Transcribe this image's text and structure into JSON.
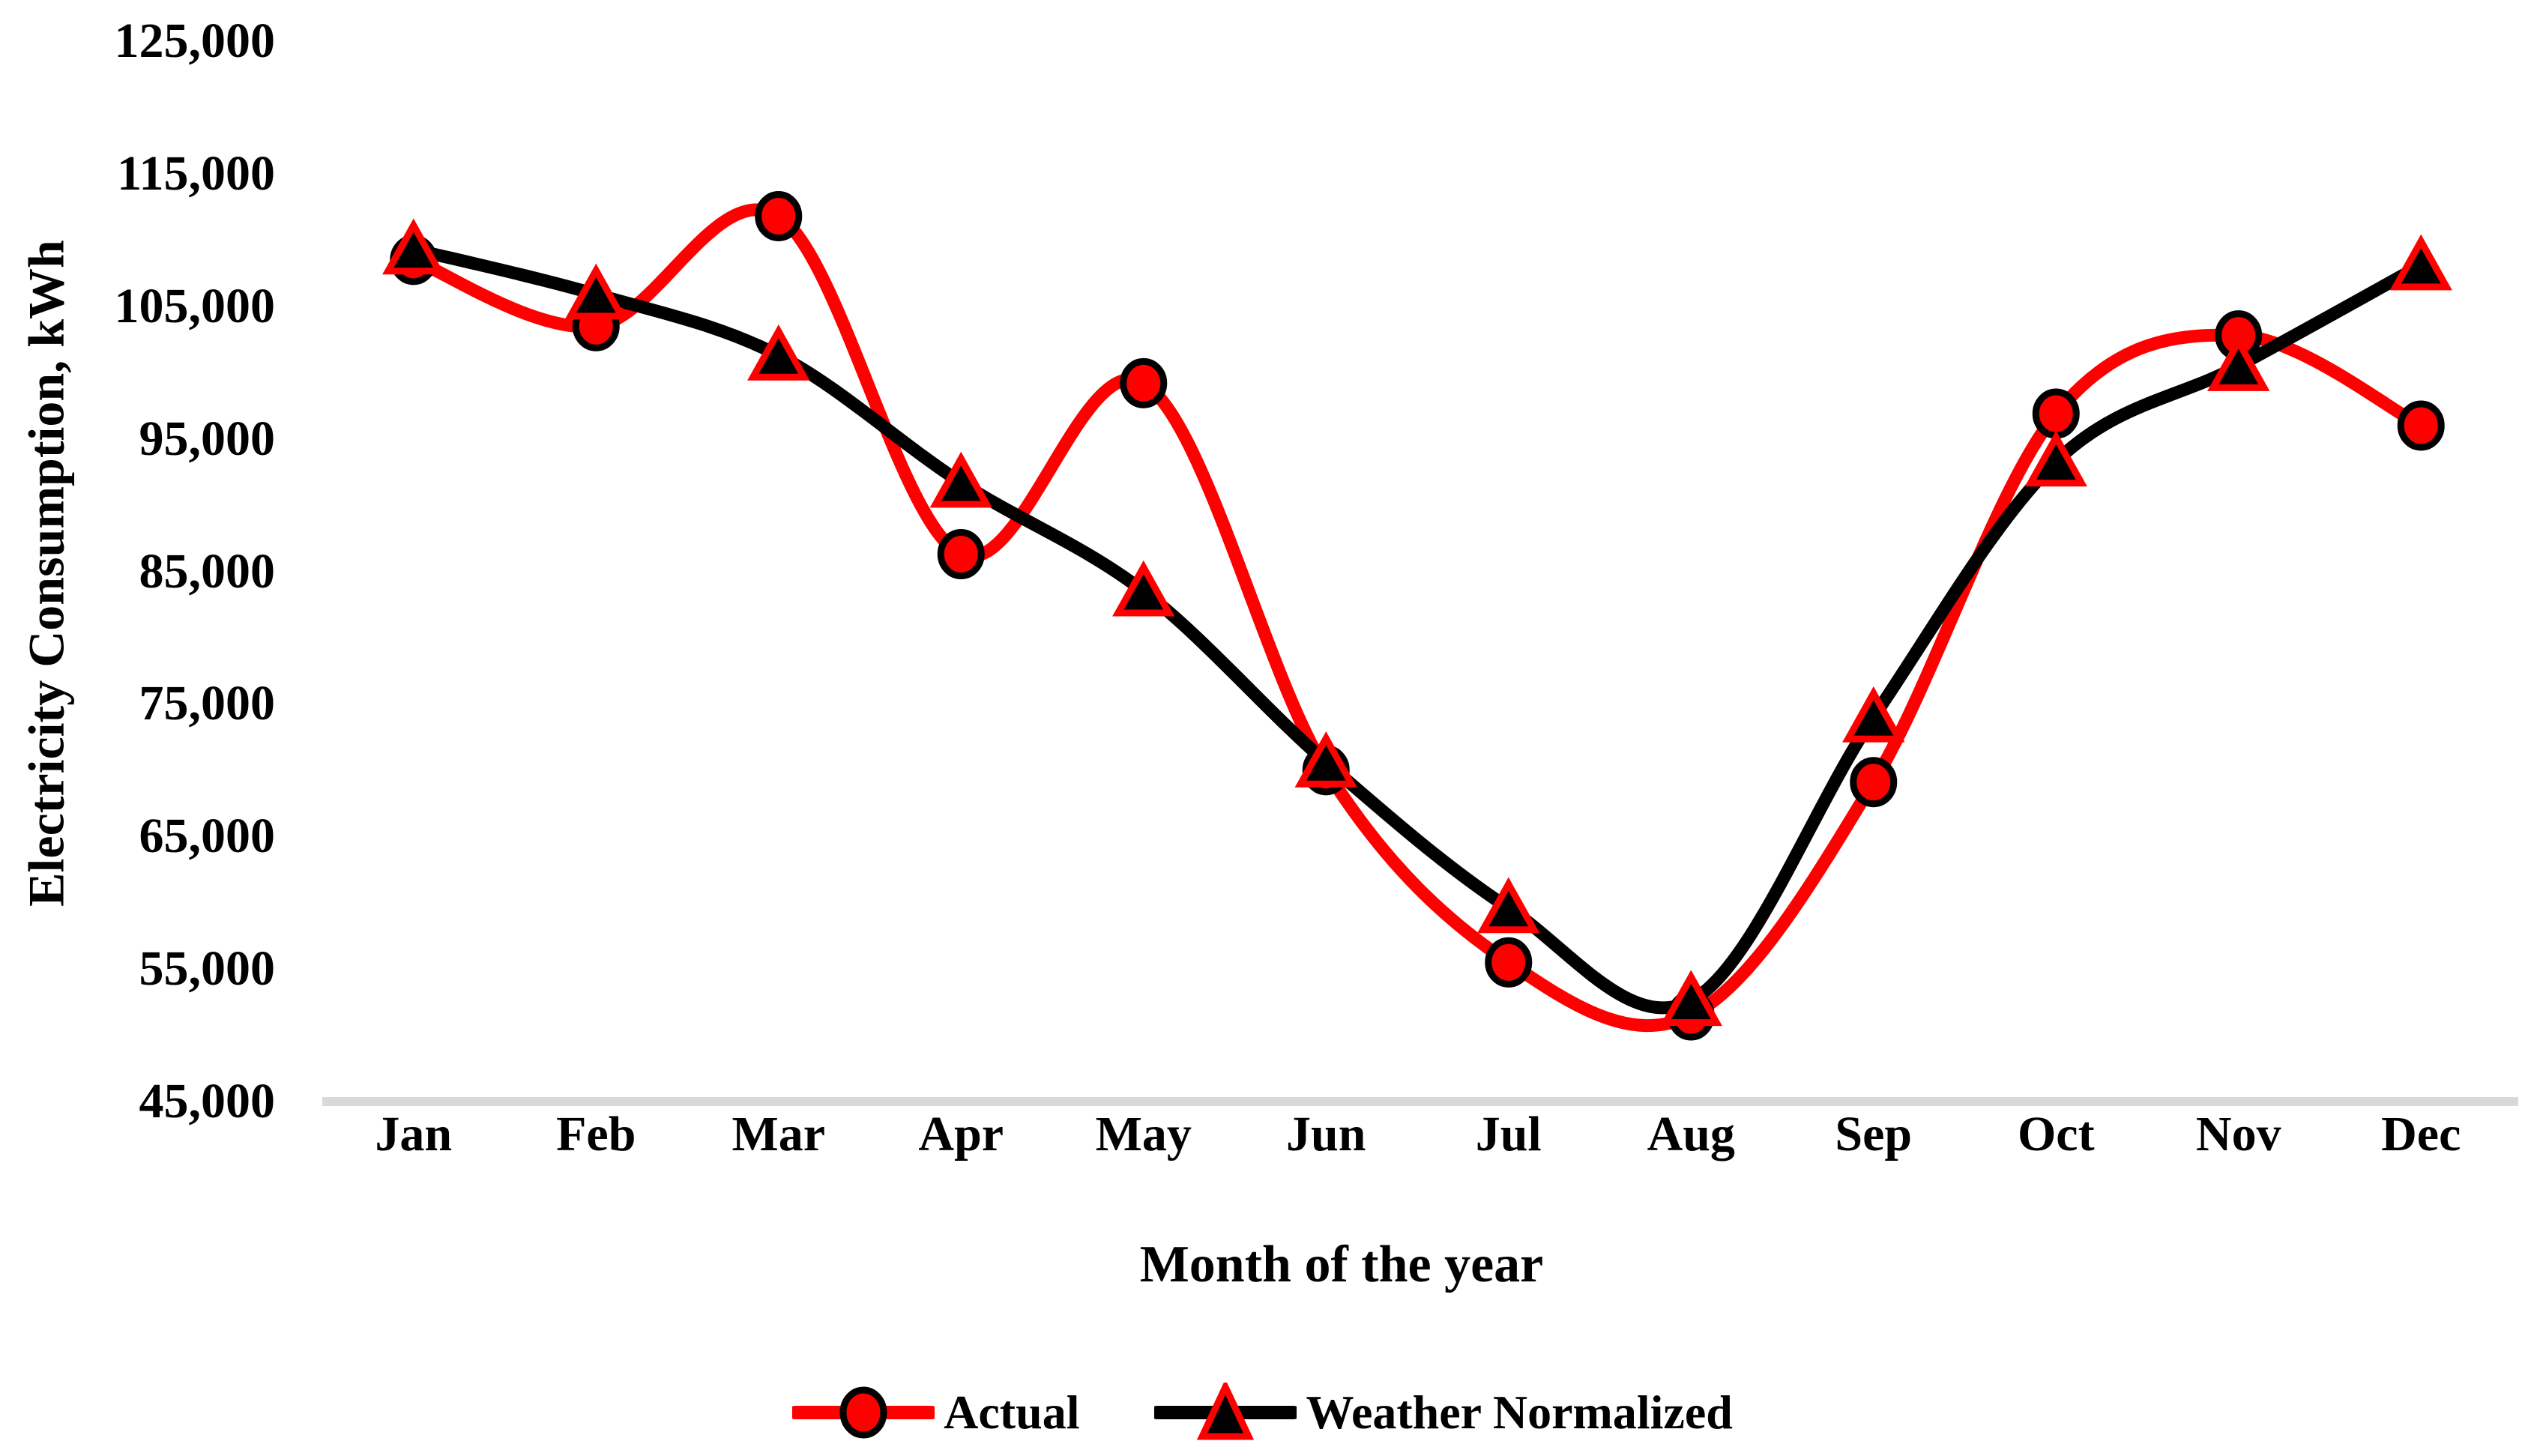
{
  "chart_data": {
    "type": "line",
    "title": "",
    "xlabel": "Month of the year",
    "ylabel": "Electricity Consumption, kWh",
    "categories": [
      "Jan",
      "Feb",
      "Mar",
      "Apr",
      "May",
      "Jun",
      "Jul",
      "Aug",
      "Sep",
      "Oct",
      "Nov",
      "Dec"
    ],
    "series": [
      {
        "name": "Actual",
        "color": "#FF0000",
        "marker": "circle",
        "marker_fill": "#FF0000",
        "marker_edge": "#000000",
        "values": [
          108500,
          103500,
          111800,
          86300,
          99200,
          70000,
          55500,
          51500,
          69100,
          96900,
          102800,
          96000
        ]
      },
      {
        "name": "Weather Normalized",
        "color": "#000000",
        "marker": "triangle",
        "marker_fill": "#000000",
        "marker_edge": "#FF0000",
        "values": [
          109300,
          105900,
          101300,
          91700,
          83500,
          70600,
          59600,
          52600,
          74000,
          93300,
          100500,
          108100
        ]
      }
    ],
    "ylim": [
      45000,
      125000
    ],
    "yticks": [
      {
        "value": 45000,
        "label": "45,000"
      },
      {
        "value": 55000,
        "label": "55,000"
      },
      {
        "value": 65000,
        "label": "65,000"
      },
      {
        "value": 75000,
        "label": "75,000"
      },
      {
        "value": 85000,
        "label": "85,000"
      },
      {
        "value": 95000,
        "label": "95,000"
      },
      {
        "value": 105000,
        "label": "105,000"
      },
      {
        "value": 115000,
        "label": "115,000"
      },
      {
        "value": 125000,
        "label": "125,000"
      }
    ],
    "grid": false,
    "smooth": true,
    "legend_position": "bottom",
    "axis_line_color": "#D9D9D9",
    "background": "#FFFFFF"
  }
}
